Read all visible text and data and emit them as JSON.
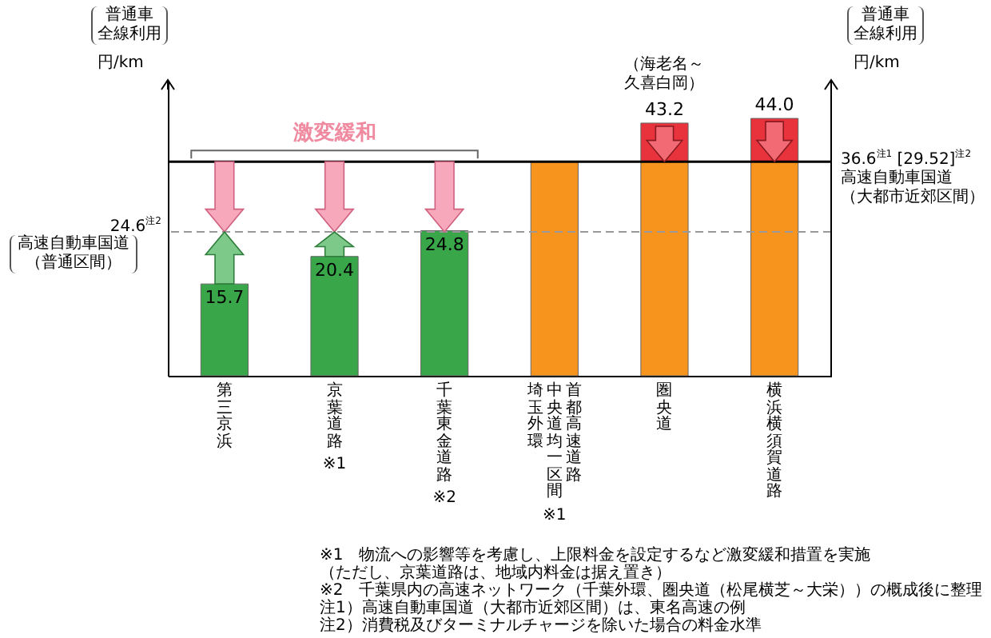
{
  "chart_data": {
    "type": "bar",
    "stacked": true,
    "categories": [
      "第三京浜",
      "京葉道路",
      "千葉東金道路",
      "首都高速道路",
      "圏央道",
      "横浜横須賀道路"
    ],
    "series": [
      {
        "colors": [
          "#3aa64a",
          "#3aa64a",
          "#3aa64a",
          "#f7941d",
          "#f7941d",
          "#f7941d"
        ],
        "values": [
          15.7,
          20.4,
          24.8,
          36.6,
          36.6,
          36.6
        ],
        "value_labels": [
          "15.7",
          "20.4",
          "24.8",
          null,
          null,
          null
        ]
      },
      {
        "color": "#e8323c",
        "values": [
          null,
          null,
          null,
          null,
          6.6,
          7.4
        ]
      }
    ],
    "totals": [
      null,
      null,
      null,
      null,
      "43.2",
      "44.0"
    ],
    "ylabel": "円/km",
    "y2label": "円/km",
    "ref_lines": [
      {
        "axis": "y",
        "value": 36.6,
        "label": "36.6$^{注1}$\n[29.52]$^{注2}$\n高速自動車国道（大都市近郊区間）",
        "color": "#000000",
        "line_style": "solid"
      },
      {
        "axis": "y",
        "value": 24.6,
        "label": "24.6$^{注2}$\n高速自動車国道（普通区間）",
        "color": "#999999",
        "line_style": "dashed"
      }
    ],
    "annotations": [
      "激変緩和",
      {
        "text": "（海老名～久喜白岡）",
        "x": "圏央道",
        "y": 43.2
      },
      "※1",
      "※2",
      "※1",
      "普通車全線利用",
      "普通車全線利用",
      "中央道均一区間",
      "埼玉外環",
      "※1　物流への影響等を考慮し、上限料金を設定するなど激変緩和措置を実施",
      "（ただし、京葉道路は、地域内料金は据え置き）",
      "※2　千葉県内の高速ネットワーク（千葉外環、圏央道（松尾横芝～大栄））の概成後に整理",
      "注1）高速自動車国道（大都市近郊区間）は、東名高速の例",
      "注2）消費税及びターミナルチャージを除いた場合の料金水準"
    ]
  }
}
